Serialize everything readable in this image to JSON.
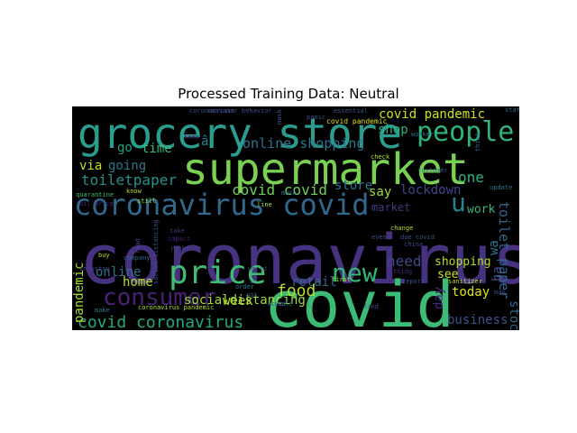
{
  "title": "Processed Training Data: Neutral",
  "palette": {
    "background": "#000000",
    "purple": "#46327e",
    "deep_purple": "#440154",
    "blue": "#365c8d",
    "teal": "#277f8e",
    "green_teal": "#1fa187",
    "green": "#4ac16d",
    "lime": "#a0da39",
    "yellow": "#fde725"
  },
  "words": [
    {
      "text": "coronavirus",
      "color": "#46327e"
    },
    {
      "text": "covid",
      "color": "#3bbb75"
    },
    {
      "text": "supermarket",
      "color": "#7ad151"
    },
    {
      "text": "grocery store",
      "color": "#2a9d8f"
    },
    {
      "text": "price",
      "color": "#3fbc73"
    },
    {
      "text": "coronavirus covid",
      "color": "#31688e"
    },
    {
      "text": "people",
      "color": "#2fb47c"
    },
    {
      "text": "new",
      "color": "#35b779"
    },
    {
      "text": "consumer",
      "color": "#482173"
    },
    {
      "text": "covid coronavirus",
      "color": "#22a884"
    },
    {
      "text": "food",
      "color": "#b5de2b"
    },
    {
      "text": "u",
      "color": "#26828e"
    },
    {
      "text": "online shopping",
      "color": "#2c728e"
    },
    {
      "text": "socialdistancing",
      "color": "#9fda3a"
    },
    {
      "text": "toiletpaper",
      "color": "#21918c"
    },
    {
      "text": "covid covid",
      "color": "#6ece58"
    },
    {
      "text": "covid pandemic",
      "color": "#d0e11c"
    },
    {
      "text": "business",
      "color": "#3b528b"
    },
    {
      "text": "shopping",
      "color": "#b5de2b"
    },
    {
      "text": "lockdown",
      "color": "#3e4989"
    },
    {
      "text": "store",
      "color": "#2c728e"
    },
    {
      "text": "time",
      "color": "#38b977"
    },
    {
      "text": "go",
      "color": "#1fa187"
    },
    {
      "text": "via",
      "color": "#bddf26"
    },
    {
      "text": "going",
      "color": "#2a788e"
    },
    {
      "text": "one",
      "color": "#2db27d"
    },
    {
      "text": "market",
      "color": "#443a83"
    },
    {
      "text": "retail",
      "color": "#31688e"
    },
    {
      "text": "need",
      "color": "#3e4989"
    },
    {
      "text": "home",
      "color": "#b5de2b"
    },
    {
      "text": "online",
      "color": "#2c728e"
    },
    {
      "text": "week",
      "color": "#b5de2b"
    },
    {
      "text": "today",
      "color": "#dde318"
    },
    {
      "text": "see",
      "color": "#cae11f"
    },
    {
      "text": "work",
      "color": "#35b779"
    },
    {
      "text": "day",
      "color": "#482878"
    },
    {
      "text": "say",
      "color": "#9fda3a"
    },
    {
      "text": "shop",
      "color": "#2db27d"
    },
    {
      "text": "stock",
      "color": "#31688e"
    },
    {
      "text": "toilet paper",
      "color": "#31688e"
    },
    {
      "text": "pandemic",
      "color": "#a5db36"
    },
    {
      "text": "wa",
      "color": "#2a788e"
    },
    {
      "text": "ha",
      "color": "#3b528b"
    },
    {
      "text": "â",
      "color": "#26828e"
    },
    {
      "text": "covid pandemic",
      "color": "#d8e219"
    },
    {
      "text": "coronacrisis",
      "color": "#3b528b"
    },
    {
      "text": "consumer behavior",
      "color": "#3e4989"
    },
    {
      "text": "essential",
      "color": "#39568c"
    },
    {
      "text": "mask",
      "color": "#3b528b"
    },
    {
      "text": "quarantine",
      "color": "#3fbc73"
    },
    {
      "text": "oil price",
      "color": "#46337f"
    },
    {
      "text": "know",
      "color": "#bddf26"
    },
    {
      "text": "still",
      "color": "#a0da39"
    },
    {
      "text": "keep",
      "color": "#471063"
    },
    {
      "text": "impact",
      "color": "#481b6d"
    },
    {
      "text": "read",
      "color": "#3e4989"
    },
    {
      "text": "buy",
      "color": "#b5de2b"
    },
    {
      "text": "company",
      "color": "#31688e"
    },
    {
      "text": "industry",
      "color": "#3e4989"
    },
    {
      "text": "make",
      "color": "#2a788e"
    },
    {
      "text": "social distancing",
      "color": "#3b528b"
    },
    {
      "text": "coronavirus pandemic",
      "color": "#b5de2b"
    },
    {
      "text": "take",
      "color": "#46327e"
    },
    {
      "text": "right",
      "color": "#404688"
    },
    {
      "text": "line",
      "color": "#a8db34"
    },
    {
      "text": "much",
      "color": "#2e6f8e"
    },
    {
      "text": "first",
      "color": "#b5de2b"
    },
    {
      "text": "order",
      "color": "#2a788e"
    },
    {
      "text": "got",
      "color": "#3b528b"
    },
    {
      "text": "sale",
      "color": "#2c728e"
    },
    {
      "text": "state",
      "color": "#3e4989"
    },
    {
      "text": "find",
      "color": "#3e4989"
    },
    {
      "text": "even",
      "color": "#3b528b"
    },
    {
      "text": "change",
      "color": "#b5de2b"
    },
    {
      "text": "due covid",
      "color": "#3b528b"
    },
    {
      "text": "worker",
      "color": "#2c728e"
    },
    {
      "text": "customer",
      "color": "#31688e"
    },
    {
      "text": "check",
      "color": "#b5de2b"
    },
    {
      "text": "report",
      "color": "#3b528b"
    },
    {
      "text": "thing",
      "color": "#46327e"
    },
    {
      "text": "china",
      "color": "#3e4989"
    },
    {
      "text": "sanitizer",
      "color": "#b5de2b"
    },
    {
      "text": "update",
      "color": "#2c728e"
    },
    {
      "text": "think",
      "color": "#31688e"
    },
    {
      "text": "may",
      "color": "#3e4989"
    },
    {
      "text": "staffing",
      "color": "#2c728e"
    },
    {
      "text": "panic",
      "color": "#3b528b"
    },
    {
      "text": "world",
      "color": "#46327e"
    }
  ]
}
